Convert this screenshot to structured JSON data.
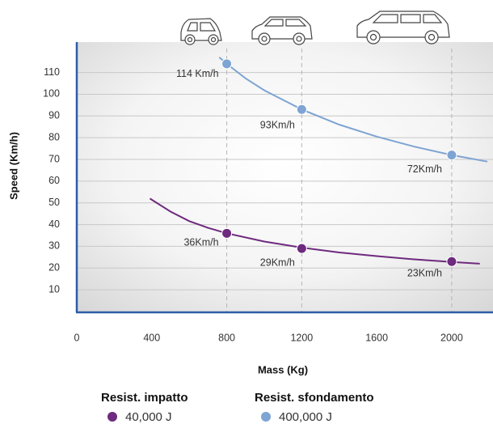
{
  "chart_data": {
    "type": "line",
    "x_label": "Mass (Kg)",
    "y_label": "Speed (Km/h)",
    "xlim": [
      0,
      2190
    ],
    "ylim": [
      0,
      124
    ],
    "xticks": [
      0,
      400,
      800,
      1200,
      1600,
      2000
    ],
    "yticks": [
      10,
      20,
      30,
      40,
      50,
      60,
      70,
      80,
      90,
      100,
      110
    ],
    "grid": true,
    "series": [
      {
        "name": "Resist. impatto",
        "legend_label": "40,000 J",
        "color": "#6e2a7e",
        "x": [
          800,
          1200,
          2000
        ],
        "values": [
          36,
          29,
          23
        ],
        "value_labels": [
          "36Km/h",
          "29Km/h",
          "23Km/h"
        ],
        "curve_x": [
          390,
          500,
          600,
          700,
          800,
          1000,
          1200,
          1400,
          1600,
          1800,
          2000,
          2150
        ],
        "curve_values": [
          52,
          46,
          41.6,
          38.5,
          36,
          32.2,
          29.4,
          27.2,
          25.5,
          24,
          22.8,
          22
        ]
      },
      {
        "name": "Resist. sfondamento",
        "legend_label": "400,000 J",
        "color": "#7ea4d3",
        "x": [
          800,
          1200,
          2000
        ],
        "values": [
          114,
          93,
          72
        ],
        "value_labels": [
          "114 Km/h",
          "93Km/h",
          "72Km/h"
        ],
        "curve_x": [
          760,
          800,
          900,
          1000,
          1200,
          1400,
          1600,
          1800,
          2000,
          2190
        ],
        "curve_values": [
          117,
          114,
          107.3,
          101.8,
          93,
          86,
          80.5,
          75.9,
          72,
          69
        ]
      }
    ]
  }
}
